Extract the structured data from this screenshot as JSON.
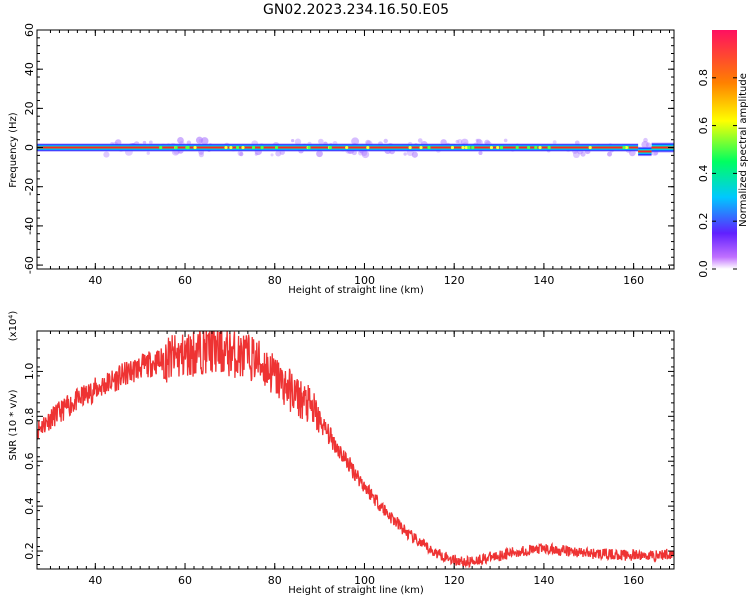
{
  "title": "GN02.2023.234.16.50.E05",
  "colors": {
    "signal_line": "#ff2222",
    "snr_line": "#ee3333",
    "colorbar": [
      "#a020f0",
      "#4020ff",
      "#00c8ff",
      "#00ff60",
      "#ffff00",
      "#ff8000",
      "#ff1060"
    ]
  },
  "chart_data": [
    {
      "type": "heatmap",
      "xlabel": "Height of straight line (km)",
      "ylabel": "Frequency (Hz)",
      "xlim": [
        27,
        169
      ],
      "ylim": [
        -62,
        60
      ],
      "xticks": [
        40,
        60,
        80,
        100,
        120,
        140,
        160
      ],
      "yticks": [
        -60,
        -40,
        -20,
        0,
        20,
        40,
        60
      ],
      "band_center_hz": 0,
      "band_halfwidth_hz": 1.5,
      "shift_segment": {
        "x_start": 161,
        "x_end": 164,
        "offset_hz": -2
      },
      "colorbar": {
        "label": "Normalized spectral amplitude",
        "range": [
          0,
          1
        ],
        "ticks": [
          0.0,
          0.2,
          0.4,
          0.6,
          0.8
        ]
      }
    },
    {
      "type": "line",
      "xlabel": "Height of straight line (km)",
      "ylabel": "SNR (10 * v/v)",
      "y_multiplier": "(x10⁴)",
      "xlim": [
        27,
        169
      ],
      "ylim": [
        0.12,
        1.18
      ],
      "xticks": [
        40,
        60,
        80,
        100,
        120,
        140,
        160
      ],
      "yticks": [
        0.2,
        0.4,
        0.6,
        0.8,
        1.0
      ],
      "ytick_labels": [
        "0.2",
        "0.4",
        "0.6",
        "0.8",
        "1.0"
      ],
      "x": [
        27,
        30,
        35,
        40,
        45,
        50,
        55,
        60,
        63,
        65,
        70,
        75,
        78,
        80,
        82,
        85,
        88,
        90,
        95,
        100,
        105,
        110,
        115,
        120,
        123,
        125,
        130,
        135,
        140,
        145,
        150,
        155,
        160,
        165,
        169
      ],
      "y": [
        0.74,
        0.79,
        0.86,
        0.92,
        0.97,
        1.02,
        1.05,
        1.07,
        1.09,
        1.1,
        1.08,
        1.06,
        1.02,
        0.98,
        0.94,
        0.89,
        0.84,
        0.78,
        0.63,
        0.49,
        0.37,
        0.27,
        0.2,
        0.16,
        0.15,
        0.16,
        0.18,
        0.2,
        0.21,
        0.2,
        0.19,
        0.185,
        0.18,
        0.18,
        0.19
      ]
    }
  ]
}
